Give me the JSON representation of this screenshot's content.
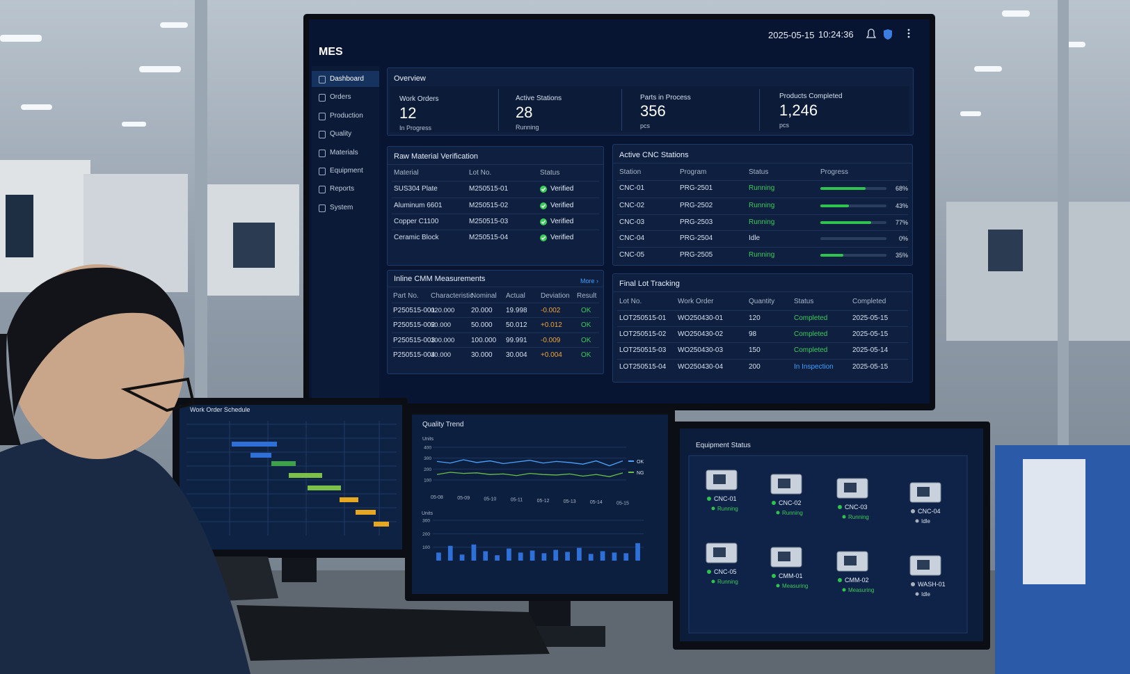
{
  "header": {
    "app": "MES",
    "date": "2025-05-15",
    "time": "10:24:36"
  },
  "nav": [
    "Dashboard",
    "Orders",
    "Production",
    "Quality",
    "Materials",
    "Equipment",
    "Reports",
    "System"
  ],
  "overview": {
    "title": "Overview",
    "cards": [
      {
        "label": "Work Orders",
        "value": 12,
        "sub": "In Progress"
      },
      {
        "label": "Active Stations",
        "value": 28,
        "sub": "Running"
      },
      {
        "label": "Parts in Process",
        "value": 356,
        "sub": "pcs"
      },
      {
        "label": "Products Completed",
        "value": "1,246",
        "sub": "pcs"
      }
    ]
  },
  "raw_material": {
    "title": "Raw Material Verification",
    "columns": [
      "Material",
      "Lot No.",
      "Status"
    ],
    "rows": [
      [
        "SUS304 Plate",
        "M250515-01",
        "Verified"
      ],
      [
        "Aluminum 6601",
        "M250515-02",
        "Verified"
      ],
      [
        "Copper C1100",
        "M250515-03",
        "Verified"
      ],
      [
        "Ceramic Block",
        "M250515-04",
        "Verified"
      ]
    ]
  },
  "cnc": {
    "title": "Active CNC Stations",
    "columns": [
      "Station",
      "Program",
      "Status",
      "Progress"
    ],
    "rows": [
      {
        "station": "CNC-01",
        "program": "PRG-2501",
        "status": "Running",
        "progress": 68,
        "progress_label": "68%"
      },
      {
        "station": "CNC-02",
        "program": "PRG-2502",
        "status": "Running",
        "progress": 43,
        "progress_label": "43%"
      },
      {
        "station": "CNC-03",
        "program": "PRG-2503",
        "status": "Running",
        "progress": 77,
        "progress_label": "77%"
      },
      {
        "station": "CNC-04",
        "program": "PRG-2504",
        "status": "Idle",
        "progress": 0,
        "progress_label": "0%"
      },
      {
        "station": "CNC-05",
        "program": "PRG-2505",
        "status": "Running",
        "progress": 35,
        "progress_label": "35%"
      }
    ]
  },
  "cmm": {
    "title": "Inline CMM Measurements",
    "more": "More ›",
    "columns": [
      "Part No.",
      "Characteristic",
      "Nominal",
      "Actual",
      "Deviation",
      "Result"
    ],
    "rows": [
      [
        "P250515-001",
        "020.000",
        "20.000",
        "19.998",
        "-0.002",
        "OK"
      ],
      [
        "P250515-002",
        "50.000",
        "50.000",
        "50.012",
        "+0.012",
        "OK"
      ],
      [
        "P250515-003",
        "100.000",
        "100.000",
        "99.991",
        "-0.009",
        "OK"
      ],
      [
        "P250515-004",
        "30.000",
        "30.000",
        "30.004",
        "+0.004",
        "OK"
      ]
    ]
  },
  "final_lot": {
    "title": "Final Lot Tracking",
    "columns": [
      "Lot No.",
      "Work Order",
      "Quantity",
      "Status",
      "Completed"
    ],
    "rows": [
      [
        "LOT250515-01",
        "WO250430-01",
        120,
        "Completed",
        "2025-05-15"
      ],
      [
        "LOT250515-02",
        "WO250430-02",
        98,
        "Completed",
        "2025-05-15"
      ],
      [
        "LOT250515-03",
        "WO250430-03",
        150,
        "Completed",
        "2025-05-14"
      ],
      [
        "LOT250515-04",
        "WO250430-04",
        200,
        "In Inspection",
        "2025-05-15"
      ]
    ]
  },
  "schedule": {
    "title": "Work Order Schedule"
  },
  "equipment": {
    "title": "Equipment Status",
    "items": [
      {
        "name": "CNC-01",
        "status": "Running"
      },
      {
        "name": "CNC-02",
        "status": "Running"
      },
      {
        "name": "CNC-03",
        "status": "Running"
      },
      {
        "name": "CNC-04",
        "status": "Idle"
      },
      {
        "name": "CNC-05",
        "status": "Running"
      },
      {
        "name": "CMM-01",
        "status": "Measuring"
      },
      {
        "name": "CMM-02",
        "status": "Measuring"
      },
      {
        "name": "WASH-01",
        "status": "Idle"
      }
    ]
  },
  "chart_data": [
    {
      "type": "line",
      "title": "Quality Trend",
      "ylabel": "Units",
      "categories": [
        "05-08",
        null,
        "05-09",
        null,
        "05-10",
        null,
        "05-11",
        null,
        "05-12",
        null,
        "05-13",
        null,
        "05-14",
        null,
        "05-15"
      ],
      "series": [
        {
          "name": "OK",
          "color": "#4aa3ff",
          "values": [
            270,
            255,
            285,
            260,
            275,
            250,
            265,
            280,
            255,
            270,
            260,
            245,
            275,
            230,
            275
          ]
        },
        {
          "name": "NG",
          "color": "#6cc04a",
          "values": [
            150,
            170,
            160,
            165,
            150,
            155,
            140,
            160,
            150,
            145,
            155,
            135,
            150,
            130,
            165
          ]
        }
      ],
      "ylim": [
        100,
        400
      ],
      "yticks": [
        100,
        200,
        300,
        400
      ]
    },
    {
      "type": "bar",
      "ylabel": "Units",
      "color": "#2f6fd8",
      "categories": [
        null,
        null,
        null,
        null,
        null,
        null,
        null,
        null,
        null,
        null,
        null,
        null,
        null,
        null,
        null,
        null,
        null,
        null
      ],
      "values": [
        60,
        110,
        45,
        120,
        70,
        40,
        90,
        60,
        75,
        55,
        80,
        65,
        95,
        50,
        70,
        60,
        55,
        130
      ],
      "ylim": [
        0,
        300
      ],
      "yticks": [
        100,
        200,
        300
      ]
    }
  ]
}
